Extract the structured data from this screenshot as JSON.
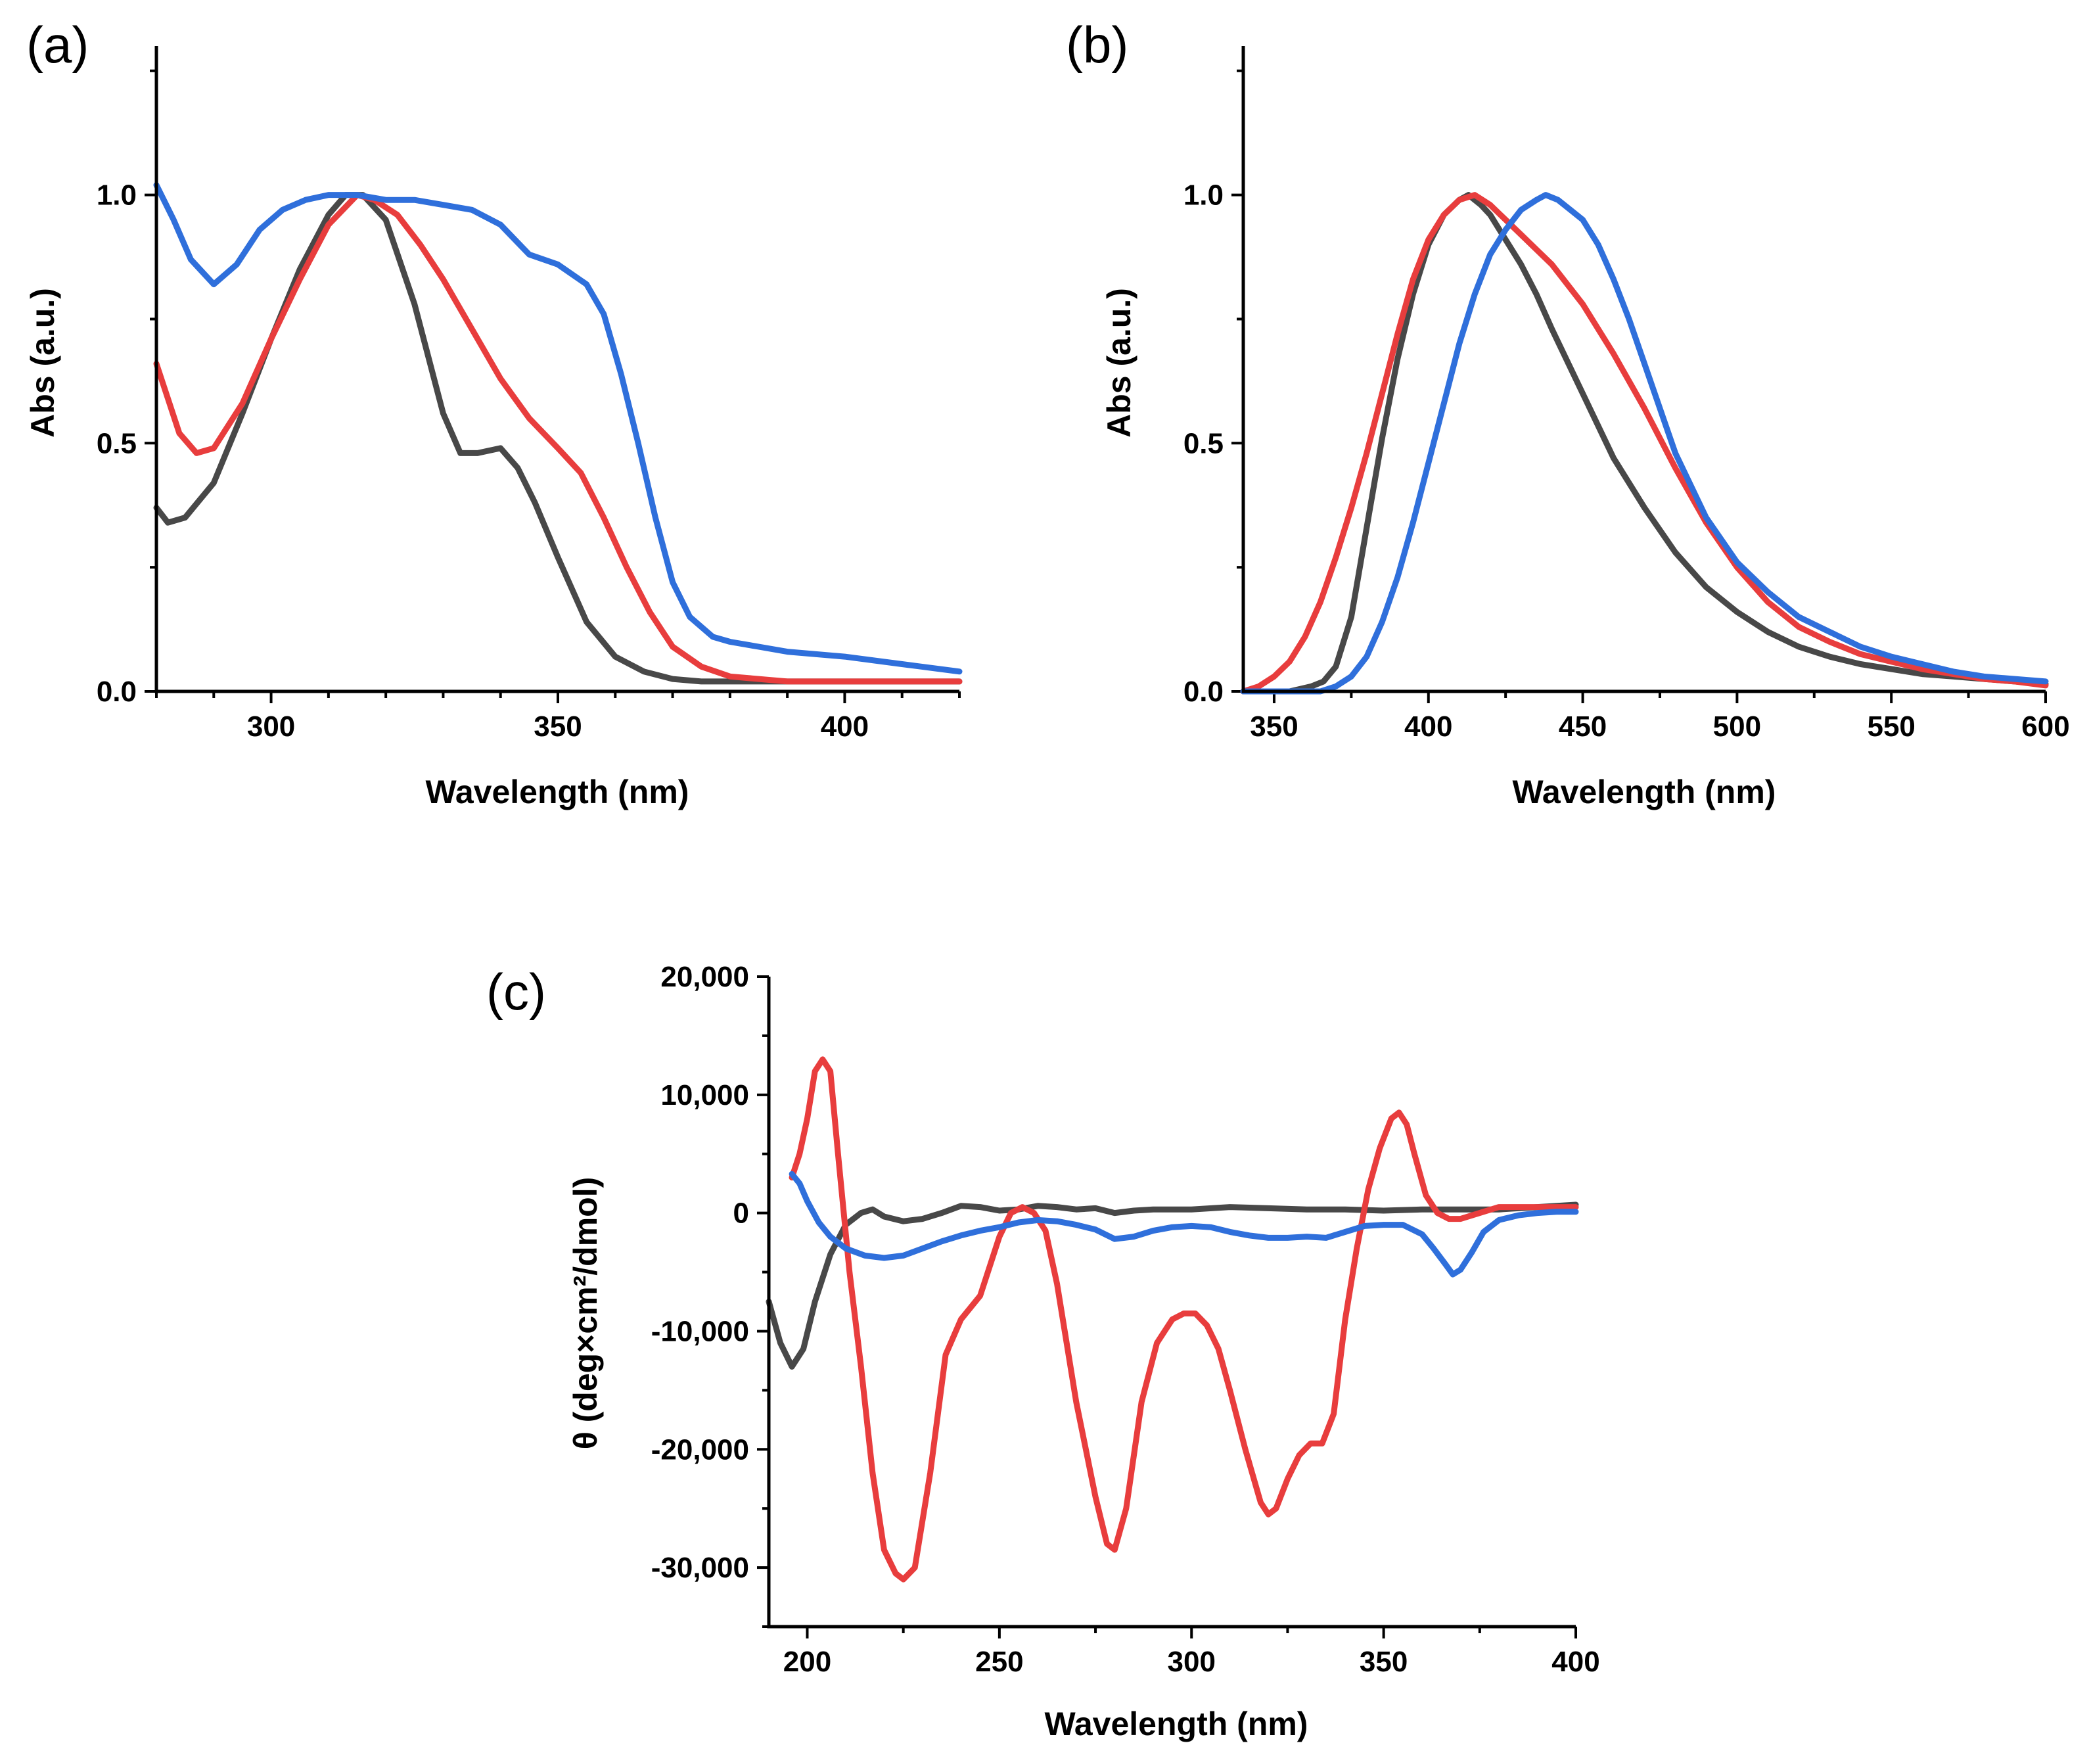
{
  "chart_data": [
    {
      "panel": "(a)",
      "type": "line",
      "xlabel": "Wavelength (nm)",
      "ylabel": "Abs (a.u.)",
      "xlim": [
        280,
        420
      ],
      "ylim": [
        0,
        1.3
      ],
      "xticks": [
        300,
        350,
        400
      ],
      "xtick_labels": [
        "300",
        "350",
        "400"
      ],
      "yticks": [
        0,
        0.5,
        1.0
      ],
      "ytick_labels": [
        "0.0",
        "0.5",
        "1.0"
      ],
      "series": [
        {
          "color": "#484848",
          "x": [
            280,
            282,
            285,
            290,
            295,
            300,
            305,
            310,
            313,
            316,
            320,
            325,
            330,
            333,
            336,
            340,
            343,
            346,
            350,
            355,
            360,
            365,
            370,
            375,
            380,
            390,
            400,
            420
          ],
          "y": [
            0.37,
            0.34,
            0.35,
            0.42,
            0.56,
            0.71,
            0.85,
            0.96,
            1.0,
            1.0,
            0.95,
            0.78,
            0.56,
            0.48,
            0.48,
            0.49,
            0.45,
            0.38,
            0.27,
            0.14,
            0.07,
            0.04,
            0.025,
            0.02,
            0.02,
            0.02,
            0.02,
            0.02
          ]
        },
        {
          "color": "#e83d3d",
          "x": [
            280,
            284,
            287,
            290,
            295,
            300,
            305,
            310,
            315,
            318,
            322,
            326,
            330,
            335,
            340,
            345,
            350,
            354,
            358,
            362,
            366,
            370,
            375,
            380,
            390,
            400,
            420
          ],
          "y": [
            0.66,
            0.52,
            0.48,
            0.49,
            0.58,
            0.71,
            0.83,
            0.94,
            1.0,
            0.99,
            0.96,
            0.9,
            0.83,
            0.73,
            0.63,
            0.55,
            0.49,
            0.44,
            0.35,
            0.25,
            0.16,
            0.09,
            0.05,
            0.03,
            0.02,
            0.02,
            0.02
          ]
        },
        {
          "color": "#2f6fdb",
          "x": [
            280,
            283,
            286,
            290,
            294,
            298,
            302,
            306,
            310,
            315,
            320,
            325,
            330,
            335,
            340,
            345,
            350,
            355,
            358,
            361,
            364,
            367,
            370,
            373,
            377,
            380,
            385,
            390,
            400,
            410,
            420
          ],
          "y": [
            1.02,
            0.95,
            0.87,
            0.82,
            0.86,
            0.93,
            0.97,
            0.99,
            1.0,
            1.0,
            0.99,
            0.99,
            0.98,
            0.97,
            0.94,
            0.88,
            0.86,
            0.82,
            0.76,
            0.64,
            0.5,
            0.35,
            0.22,
            0.15,
            0.11,
            0.1,
            0.09,
            0.08,
            0.07,
            0.055,
            0.04
          ]
        }
      ]
    },
    {
      "panel": "(b)",
      "type": "line",
      "xlabel": "Wavelength (nm)",
      "ylabel": "Abs (a.u.)",
      "xlim": [
        340,
        600
      ],
      "ylim": [
        0,
        1.3
      ],
      "xticks": [
        350,
        400,
        450,
        500,
        550,
        600
      ],
      "xtick_labels": [
        "350",
        "400",
        "450",
        "500",
        "550",
        "600"
      ],
      "yticks": [
        0,
        0.5,
        1.0
      ],
      "ytick_labels": [
        "0.0",
        "0.5",
        "1.0"
      ],
      "series": [
        {
          "color": "#484848",
          "x": [
            340,
            355,
            362,
            366,
            370,
            375,
            380,
            385,
            390,
            395,
            400,
            405,
            410,
            413,
            417,
            420,
            425,
            430,
            435,
            440,
            450,
            460,
            470,
            480,
            490,
            500,
            510,
            520,
            530,
            540,
            550,
            560,
            570,
            580,
            590,
            600
          ],
          "y": [
            0.0,
            0.0,
            0.01,
            0.02,
            0.05,
            0.15,
            0.33,
            0.51,
            0.67,
            0.8,
            0.9,
            0.96,
            0.99,
            1.0,
            0.98,
            0.96,
            0.91,
            0.86,
            0.8,
            0.73,
            0.6,
            0.47,
            0.37,
            0.28,
            0.21,
            0.16,
            0.12,
            0.09,
            0.07,
            0.055,
            0.045,
            0.035,
            0.03,
            0.025,
            0.02,
            0.015
          ]
        },
        {
          "color": "#e83d3d",
          "x": [
            340,
            345,
            350,
            355,
            360,
            365,
            370,
            375,
            380,
            385,
            390,
            395,
            400,
            405,
            410,
            415,
            420,
            425,
            430,
            440,
            450,
            460,
            470,
            480,
            490,
            500,
            510,
            520,
            530,
            540,
            550,
            560,
            570,
            580,
            590,
            600
          ],
          "y": [
            0.0,
            0.01,
            0.03,
            0.06,
            0.11,
            0.18,
            0.27,
            0.37,
            0.48,
            0.6,
            0.72,
            0.83,
            0.91,
            0.96,
            0.99,
            1.0,
            0.98,
            0.95,
            0.92,
            0.86,
            0.78,
            0.68,
            0.57,
            0.45,
            0.34,
            0.25,
            0.18,
            0.13,
            0.1,
            0.075,
            0.06,
            0.045,
            0.035,
            0.025,
            0.02,
            0.012
          ]
        },
        {
          "color": "#2f6fdb",
          "x": [
            340,
            365,
            370,
            375,
            380,
            385,
            390,
            395,
            400,
            405,
            410,
            415,
            420,
            425,
            430,
            435,
            438,
            442,
            446,
            450,
            455,
            460,
            465,
            470,
            475,
            480,
            490,
            500,
            510,
            520,
            530,
            540,
            550,
            560,
            570,
            580,
            590,
            600
          ],
          "y": [
            0.0,
            0.0,
            0.01,
            0.03,
            0.07,
            0.14,
            0.23,
            0.34,
            0.46,
            0.58,
            0.7,
            0.8,
            0.88,
            0.93,
            0.97,
            0.99,
            1.0,
            0.99,
            0.97,
            0.95,
            0.9,
            0.83,
            0.75,
            0.66,
            0.57,
            0.48,
            0.35,
            0.26,
            0.2,
            0.15,
            0.12,
            0.09,
            0.07,
            0.055,
            0.04,
            0.03,
            0.025,
            0.02
          ]
        }
      ]
    },
    {
      "panel": "(c)",
      "type": "line",
      "xlabel": "Wavelength (nm)",
      "ylabel": "θ (deg×cm²/dmol)",
      "xlim": [
        190,
        400
      ],
      "ylim": [
        -35000,
        20000
      ],
      "xticks": [
        200,
        250,
        300,
        350,
        400
      ],
      "xtick_labels": [
        "200",
        "250",
        "300",
        "350",
        "400"
      ],
      "yticks": [
        -30000,
        -20000,
        -10000,
        0,
        10000,
        20000
      ],
      "ytick_labels": [
        "-30,000",
        "-20,000",
        "-10,000",
        "0",
        "10,000",
        "20,000"
      ],
      "series": [
        {
          "color": "#484848",
          "x": [
            190,
            193,
            196,
            199,
            202,
            206,
            210,
            214,
            217,
            220,
            225,
            230,
            235,
            240,
            245,
            250,
            255,
            260,
            265,
            270,
            275,
            280,
            285,
            290,
            300,
            310,
            320,
            330,
            340,
            350,
            360,
            370,
            380,
            390,
            400
          ],
          "y": [
            -7500,
            -11000,
            -13000,
            -11500,
            -7500,
            -3500,
            -1000,
            0,
            300,
            -300,
            -700,
            -500,
            0,
            600,
            500,
            200,
            300,
            600,
            500,
            300,
            400,
            0,
            200,
            300,
            300,
            500,
            400,
            300,
            300,
            200,
            300,
            300,
            300,
            500,
            700
          ]
        },
        {
          "color": "#e83d3d",
          "x": [
            196,
            198,
            200,
            202,
            204,
            206,
            208,
            211,
            214,
            217,
            220,
            223,
            225,
            228,
            232,
            236,
            240,
            245,
            250,
            253,
            256,
            259,
            262,
            265,
            270,
            275,
            278,
            280,
            283,
            287,
            291,
            295,
            298,
            301,
            304,
            307,
            310,
            314,
            318,
            320,
            322,
            325,
            328,
            331,
            334,
            337,
            340,
            343,
            346,
            349,
            352,
            354,
            356,
            358,
            361,
            364,
            367,
            370,
            375,
            380,
            390,
            400
          ],
          "y": [
            3000,
            5000,
            8000,
            12000,
            13000,
            12000,
            5000,
            -5000,
            -13000,
            -22000,
            -28500,
            -30500,
            -31000,
            -30000,
            -22000,
            -12000,
            -9000,
            -7000,
            -2000,
            0,
            500,
            0,
            -1500,
            -6000,
            -16000,
            -24000,
            -28000,
            -28500,
            -25000,
            -16000,
            -11000,
            -9000,
            -8500,
            -8500,
            -9500,
            -11500,
            -15000,
            -20000,
            -24500,
            -25500,
            -25000,
            -22500,
            -20500,
            -19500,
            -19500,
            -17000,
            -9000,
            -3000,
            2000,
            5500,
            8000,
            8500,
            7500,
            5000,
            1500,
            0,
            -500,
            -500,
            0,
            500,
            500,
            500
          ]
        },
        {
          "color": "#2f6fdb",
          "x": [
            196,
            198,
            200,
            203,
            206,
            210,
            215,
            220,
            225,
            230,
            235,
            240,
            245,
            250,
            255,
            260,
            265,
            270,
            275,
            280,
            285,
            290,
            295,
            300,
            305,
            310,
            315,
            320,
            325,
            330,
            335,
            340,
            345,
            350,
            355,
            360,
            363,
            366,
            368,
            370,
            373,
            376,
            380,
            385,
            390,
            395,
            400
          ],
          "y": [
            3300,
            2500,
            1000,
            -800,
            -2000,
            -3000,
            -3600,
            -3800,
            -3600,
            -3000,
            -2400,
            -1900,
            -1500,
            -1200,
            -800,
            -600,
            -700,
            -1000,
            -1400,
            -2200,
            -2000,
            -1500,
            -1200,
            -1100,
            -1200,
            -1600,
            -1900,
            -2100,
            -2100,
            -2000,
            -2100,
            -1600,
            -1100,
            -1000,
            -1000,
            -1800,
            -3000,
            -4300,
            -5200,
            -4800,
            -3300,
            -1600,
            -600,
            -200,
            0,
            100,
            100
          ]
        }
      ]
    }
  ]
}
